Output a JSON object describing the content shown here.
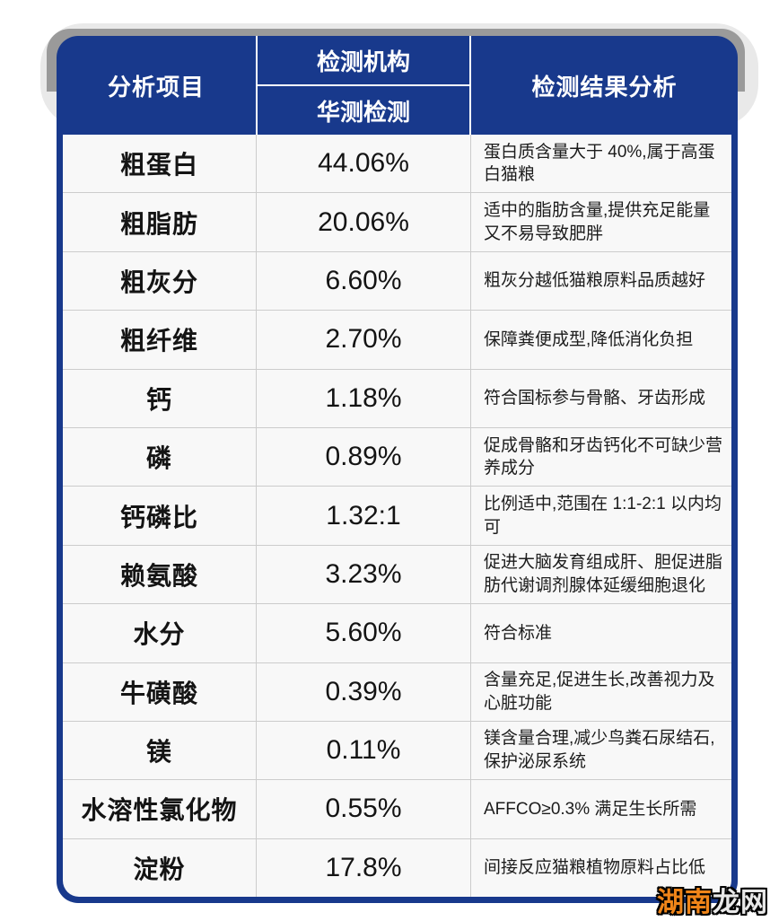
{
  "colors": {
    "table_blue": "#18398c",
    "stack_light_gray": "#e9e9e9",
    "stack_gray": "#9a9a9a",
    "row_background": "#f8f8f8",
    "separator": "#cccccc",
    "watermark_orange": "#f08519",
    "watermark_white": "#e8e8e8"
  },
  "table": {
    "header": {
      "col_item": "分析项目",
      "col_agency": "检测机构",
      "col_agency_sub": "华测检测",
      "col_analysis": "检测结果分析"
    },
    "rows": [
      {
        "item": "粗蛋白",
        "value": "44.06%",
        "note": "蛋白质含量大于 40%,属于高蛋白猫粮"
      },
      {
        "item": "粗脂肪",
        "value": "20.06%",
        "note": "适中的脂肪含量,提供充足能量又不易导致肥胖"
      },
      {
        "item": "粗灰分",
        "value": "6.60%",
        "note": "粗灰分越低猫粮原料品质越好"
      },
      {
        "item": "粗纤维",
        "value": "2.70%",
        "note": "保障粪便成型,降低消化负担"
      },
      {
        "item": "钙",
        "value": "1.18%",
        "note": "符合国标参与骨骼、牙齿形成"
      },
      {
        "item": "磷",
        "value": "0.89%",
        "note": "促成骨骼和牙齿钙化不可缺少营养成分"
      },
      {
        "item": "钙磷比",
        "value": "1.32:1",
        "note": "比例适中,范围在 1:1-2:1 以内均可"
      },
      {
        "item": "赖氨酸",
        "value": "3.23%",
        "note": "促进大脑发育组成肝、胆促进脂肪代谢调剂腺体延缓细胞退化"
      },
      {
        "item": "水分",
        "value": "5.60%",
        "note": "符合标准"
      },
      {
        "item": "牛磺酸",
        "value": "0.39%",
        "note": "含量充足,促进生长,改善视力及心脏功能"
      },
      {
        "item": "镁",
        "value": "0.11%",
        "note": "镁含量合理,减少鸟粪石尿结石,保护泌尿系统"
      },
      {
        "item": "水溶性氯化物",
        "value": "0.55%",
        "note": "AFFCO≥0.3% 满足生长所需"
      },
      {
        "item": "淀粉",
        "value": "17.8%",
        "note": "间接反应猫粮植物原料占比低"
      }
    ]
  },
  "watermark": {
    "part1": "湖南",
    "part2": "龙网"
  }
}
